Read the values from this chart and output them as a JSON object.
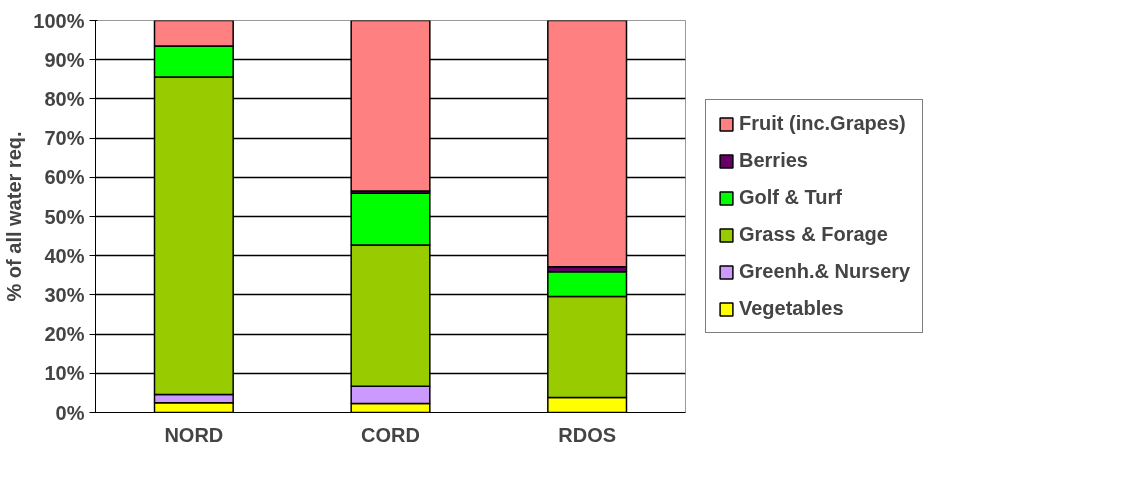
{
  "chart_data": {
    "type": "bar",
    "stacked": true,
    "ylabel": "% of all water req.",
    "categories": [
      "NORD",
      "CORD",
      "RDOS"
    ],
    "series": [
      {
        "name": "Vegetables",
        "color": "#ffff00",
        "values": [
          2.5,
          2.3,
          3.8
        ]
      },
      {
        "name": "Greenh.& Nursery",
        "color": "#cc99ff",
        "values": [
          2.1,
          4.4,
          null
        ]
      },
      {
        "name": "Grass & Forage",
        "color": "#99cc00",
        "values": [
          81,
          36,
          25.8
        ]
      },
      {
        "name": "Golf & Turf",
        "color": "#00ff00",
        "values": [
          7.9,
          13.2,
          6.3
        ]
      },
      {
        "name": "Berries",
        "color": "#660066",
        "values": [
          null,
          0.6,
          1.3
        ]
      },
      {
        "name": "Fruit (inc.Grapes)",
        "color": "#ff8080",
        "values": [
          6.5,
          43.5,
          62.8
        ]
      }
    ],
    "ylim": [
      0,
      100
    ],
    "yticks": [
      {
        "value": 0,
        "label": "0%"
      },
      {
        "value": 10,
        "label": "10%"
      },
      {
        "value": 20,
        "label": "20%"
      },
      {
        "value": 30,
        "label": "30%"
      },
      {
        "value": 40,
        "label": "40%"
      },
      {
        "value": 50,
        "label": "50%"
      },
      {
        "value": 60,
        "label": "60%"
      },
      {
        "value": 70,
        "label": "70%"
      },
      {
        "value": 80,
        "label": "80%"
      },
      {
        "value": 90,
        "label": "90%"
      },
      {
        "value": 100,
        "label": "100%"
      }
    ],
    "grid": "y",
    "legend": "right"
  }
}
